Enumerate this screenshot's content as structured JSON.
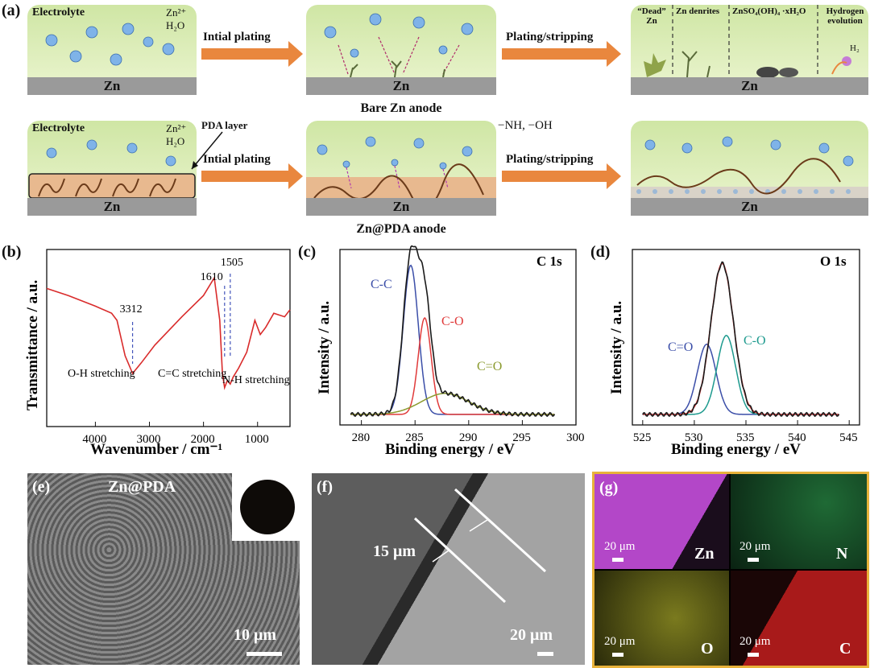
{
  "panel_a": {
    "label": "(a)",
    "electrolyte": "Electrolyte",
    "zn_ion": "Zn²⁺",
    "water": "H₂O",
    "zn": "Zn",
    "initial_plating": "Intial plating",
    "plating_stripping": "Plating/stripping",
    "bare_caption": "Bare Zn anode",
    "pda_caption": "Zn@PDA anode",
    "pda_layer": "PDA layer",
    "groups": "−NH, −OH",
    "dead_zn": "“Dead” Zn",
    "dendrites": "Zn denrites",
    "byproduct": "ZnSO₄(OH)₄ ·xH₂O",
    "hydrogen": "Hydrogen evolution",
    "h2": "H₂"
  },
  "panel_b": {
    "label": "(b)",
    "peaks": [
      "3312",
      "1610",
      "1505"
    ],
    "notes": [
      "O-H stretching",
      "C=C stretching",
      "N-H stretching"
    ]
  },
  "panel_c": {
    "label": "(c)",
    "tag": "C 1s",
    "components": [
      "C-C",
      "C-O",
      "C=O"
    ]
  },
  "panel_d": {
    "label": "(d)",
    "tag": "O 1s",
    "components": [
      "C=O",
      "C-O"
    ]
  },
  "panel_e": {
    "label": "(e)",
    "title": "Zn@PDA",
    "scale": "10 μm"
  },
  "panel_f": {
    "label": "(f)",
    "thickness": "15 μm",
    "scale": "20 μm"
  },
  "panel_g": {
    "label": "(g)",
    "elements": [
      "Zn",
      "N",
      "O",
      "C"
    ],
    "scale": "20 μm"
  },
  "colors": {
    "ftir": "#d92b2b",
    "cc": "#3b4ea8",
    "co": "#e03a3a",
    "c_o_double": "#8a9a2e",
    "teal": "#1d9a8e",
    "arrow": "#e9873e",
    "frame": "#e8b23a"
  },
  "chart_data": [
    {
      "type": "line",
      "ylabel": "Transmittance / a.u.",
      "xlabel": "Wavenumber / cm⁻¹",
      "xticks": [
        "4000",
        "3000",
        "2000",
        "1000"
      ],
      "xlim": [
        4900,
        400
      ],
      "series": [
        {
          "x": [
            4900,
            4500,
            4000,
            3700,
            3600,
            3450,
            3312,
            3150,
            2900,
            2400,
            2000,
            1800,
            1700,
            1650,
            1610,
            1560,
            1505,
            1450,
            1350,
            1200,
            1050,
            950,
            850,
            700,
            500,
            400
          ],
          "y": [
            0.78,
            0.74,
            0.68,
            0.64,
            0.6,
            0.4,
            0.3,
            0.36,
            0.46,
            0.62,
            0.74,
            0.84,
            0.6,
            0.3,
            0.22,
            0.26,
            0.24,
            0.28,
            0.33,
            0.42,
            0.6,
            0.52,
            0.56,
            0.64,
            0.62,
            0.66
          ]
        }
      ]
    },
    {
      "type": "line",
      "ylabel": "Intensity / a.u.",
      "xlabel": "Binding energy / eV",
      "xticks": [
        "280",
        "285",
        "290",
        "295",
        "300"
      ],
      "xlim": [
        278,
        300
      ],
      "series": [
        {
          "name": "C-C",
          "center": 284.6,
          "height": 0.85,
          "width": 0.7
        },
        {
          "name": "C-O",
          "center": 285.9,
          "height": 0.55,
          "width": 0.6
        },
        {
          "name": "C=O",
          "center": 287.8,
          "height": 0.12,
          "width": 2.2
        }
      ]
    },
    {
      "type": "line",
      "ylabel": "Intensity / a.u.",
      "xlabel": "Binding energy / eV",
      "xticks": [
        "525",
        "530",
        "535",
        "540",
        "545"
      ],
      "xlim": [
        524,
        546
      ],
      "series": [
        {
          "name": "C=O",
          "center": 531.2,
          "height": 0.4,
          "width": 0.9
        },
        {
          "name": "C-O",
          "center": 533.1,
          "height": 0.45,
          "width": 0.9
        },
        {
          "name": "main",
          "center": 532.7,
          "height": 0.86,
          "width": 1.1
        }
      ]
    }
  ]
}
